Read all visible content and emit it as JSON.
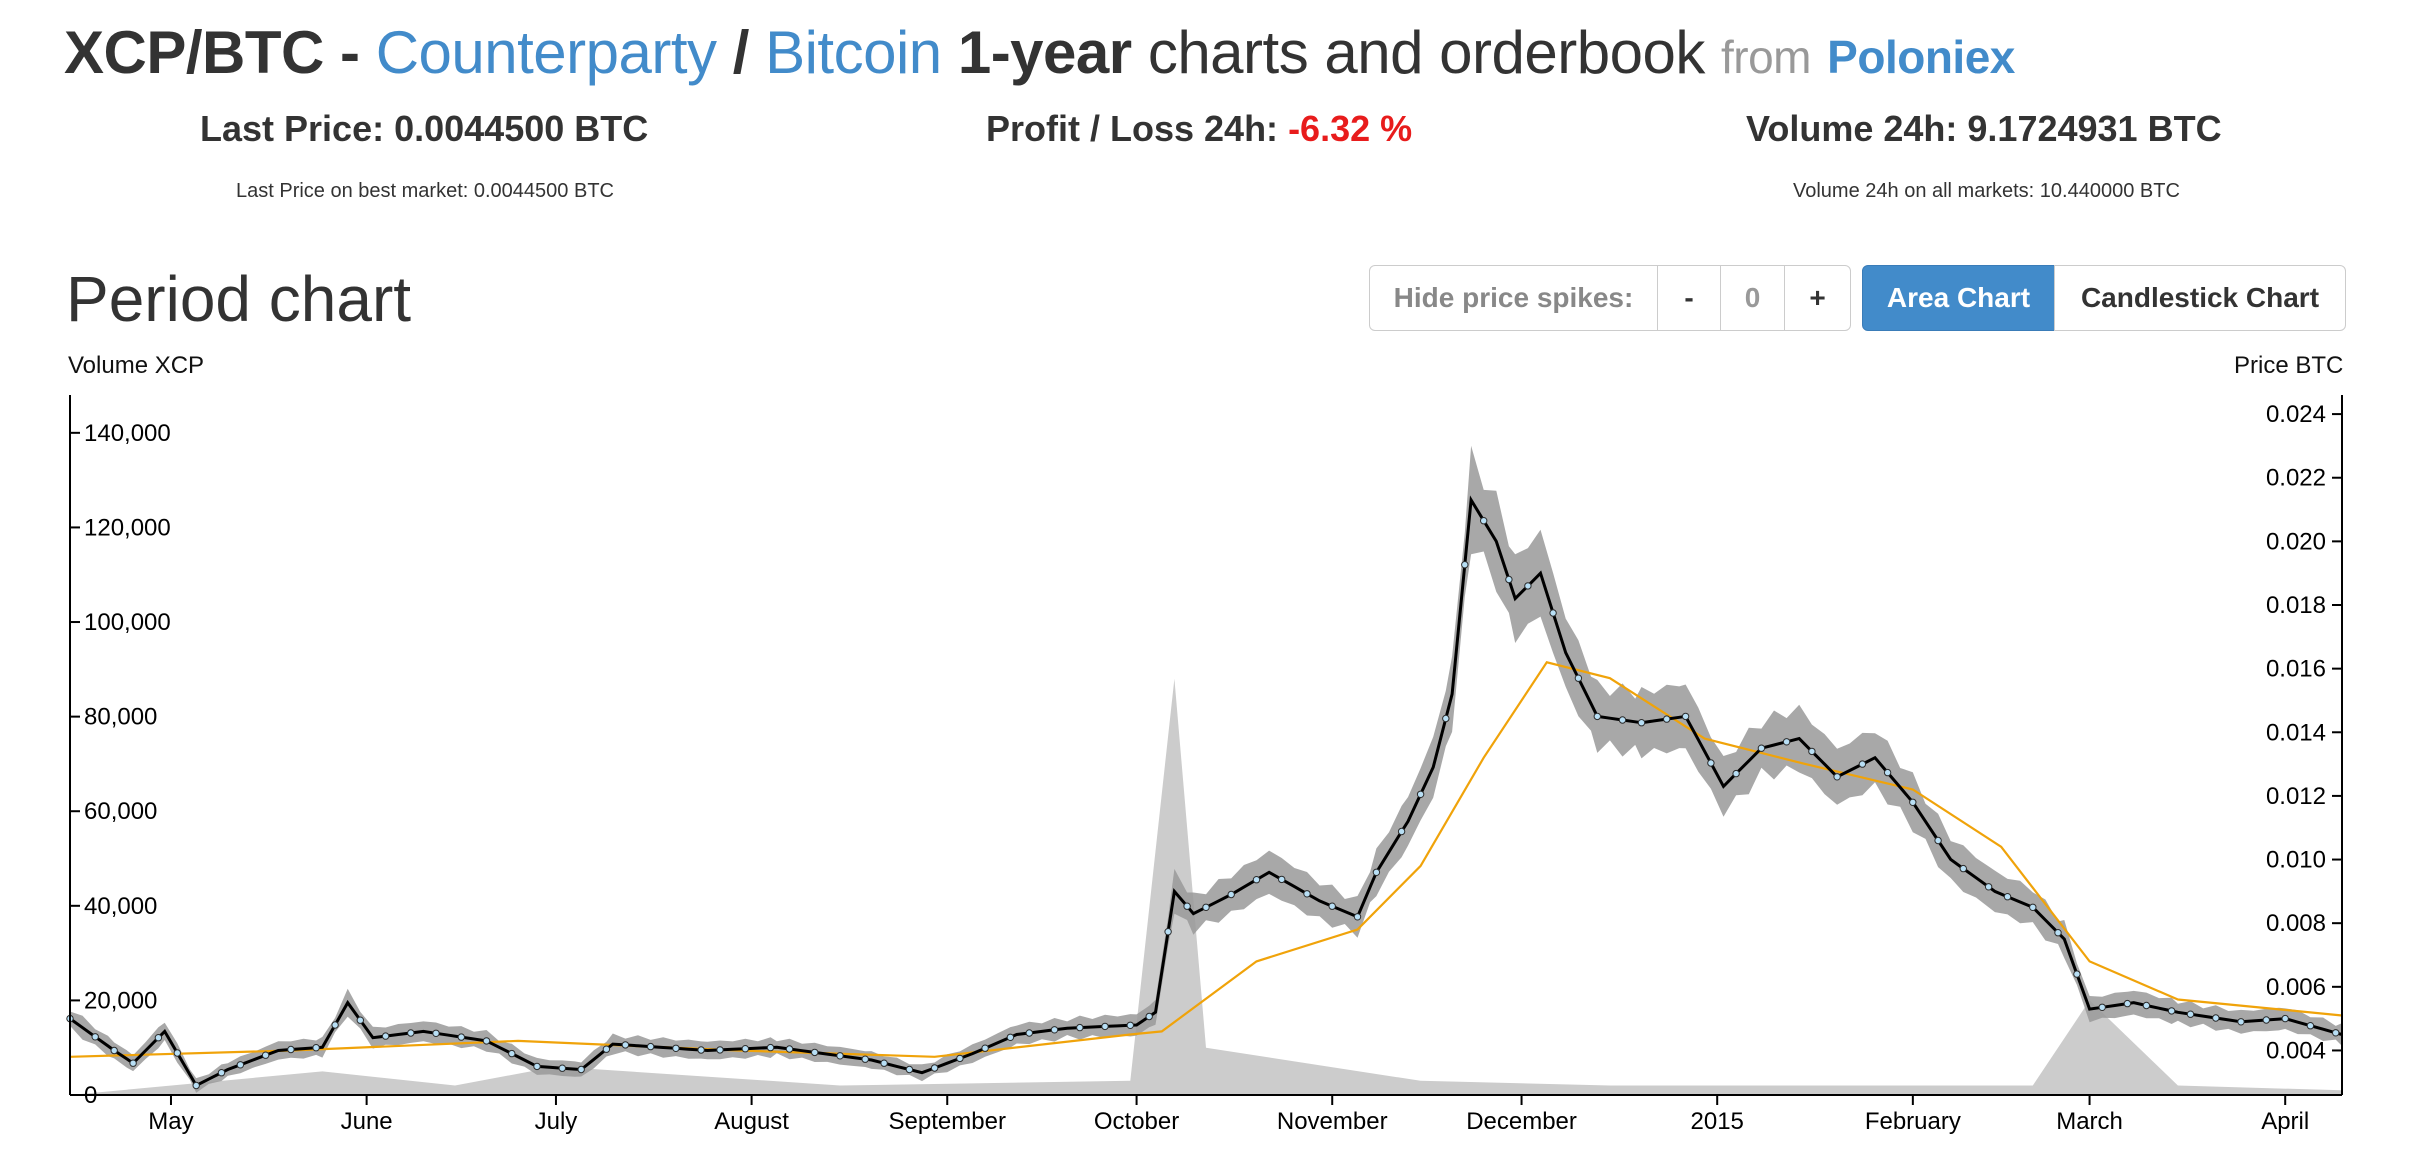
{
  "header": {
    "pair": "XCP/BTC",
    "dash": "-",
    "asset_name": "Counterparty",
    "slash": "/",
    "base_name": "Bitcoin",
    "period_text": "1-year",
    "rest_text": "charts and orderbook",
    "from_text": "from",
    "exchange": "Poloniex"
  },
  "stats": {
    "last_price_label": "Last Price:",
    "last_price_value": "0.0044500 BTC",
    "profit_label": "Profit / Loss 24h:",
    "profit_value": "-6.32 %",
    "volume_label": "Volume 24h:",
    "volume_value": "9.1724931 BTC",
    "best_market_text": "Last Price on best market: 0.0044500 BTC",
    "all_markets_text": "Volume 24h on all markets: 10.440000 BTC"
  },
  "period": {
    "title": "Period chart",
    "hide_spikes_label": "Hide price spikes:",
    "minus_label": "-",
    "spike_value": "0",
    "plus_label": "+",
    "area_chart_label": "Area Chart",
    "candlestick_chart_label": "Candlestick Chart"
  },
  "colors": {
    "accent": "#428bca",
    "negative": "#e81c1c",
    "price_line": "#000000",
    "range_band": "#999999",
    "moving_average": "#f0a30a",
    "volume_area": "#cccccc",
    "point_fill": "#b8dff5"
  },
  "chart_data": {
    "type": "line",
    "left_axis_label": "Volume XCP",
    "right_axis_label": "Price BTC",
    "x_range": [
      "2014-04-15",
      "2015-04-10"
    ],
    "x_ticks": [
      {
        "date": "2014-05-01",
        "label": "May"
      },
      {
        "date": "2014-06-01",
        "label": "June"
      },
      {
        "date": "2014-07-01",
        "label": "July"
      },
      {
        "date": "2014-08-01",
        "label": "August"
      },
      {
        "date": "2014-09-01",
        "label": "September"
      },
      {
        "date": "2014-10-01",
        "label": "October"
      },
      {
        "date": "2014-11-01",
        "label": "November"
      },
      {
        "date": "2014-12-01",
        "label": "December"
      },
      {
        "date": "2015-01-01",
        "label": "2015"
      },
      {
        "date": "2015-02-01",
        "label": "February"
      },
      {
        "date": "2015-03-01",
        "label": "March"
      },
      {
        "date": "2015-04-01",
        "label": "April"
      }
    ],
    "volume_axis": {
      "range": [
        0,
        148000
      ],
      "ticks": [
        0,
        20000,
        40000,
        60000,
        80000,
        100000,
        120000,
        140000
      ],
      "tick_labels": [
        "0",
        "20,000",
        "40,000",
        "60,000",
        "80,000",
        "100,000",
        "120,000",
        "140,000"
      ]
    },
    "price_axis": {
      "range": [
        0.0026,
        0.0246
      ],
      "ticks": [
        0.004,
        0.006,
        0.008,
        0.01,
        0.012,
        0.014,
        0.016,
        0.018,
        0.02,
        0.022,
        0.024
      ],
      "tick_labels": [
        "0.004",
        "0.006",
        "0.008",
        "0.010",
        "0.012",
        "0.014",
        "0.016",
        "0.018",
        "0.020",
        "0.022",
        "0.024"
      ]
    },
    "series": [
      {
        "name": "Price",
        "points": [
          [
            "2014-04-15",
            0.005
          ],
          [
            "2014-04-22",
            0.004
          ],
          [
            "2014-04-25",
            0.0036
          ],
          [
            "2014-04-30",
            0.0046
          ],
          [
            "2014-05-05",
            0.0029
          ],
          [
            "2014-05-10",
            0.0034
          ],
          [
            "2014-05-18",
            0.004
          ],
          [
            "2014-05-25",
            0.0041
          ],
          [
            "2014-05-29",
            0.0055
          ],
          [
            "2014-06-02",
            0.0044
          ],
          [
            "2014-06-10",
            0.0046
          ],
          [
            "2014-06-20",
            0.0043
          ],
          [
            "2014-06-28",
            0.0035
          ],
          [
            "2014-07-05",
            0.0034
          ],
          [
            "2014-07-10",
            0.0042
          ],
          [
            "2014-07-25",
            0.004
          ],
          [
            "2014-08-05",
            0.0041
          ],
          [
            "2014-08-20",
            0.0037
          ],
          [
            "2014-08-28",
            0.0033
          ],
          [
            "2014-09-05",
            0.0039
          ],
          [
            "2014-09-12",
            0.0045
          ],
          [
            "2014-09-20",
            0.0047
          ],
          [
            "2014-10-01",
            0.0048
          ],
          [
            "2014-10-04",
            0.0052
          ],
          [
            "2014-10-07",
            0.009
          ],
          [
            "2014-10-10",
            0.0083
          ],
          [
            "2014-10-16",
            0.0089
          ],
          [
            "2014-10-22",
            0.0096
          ],
          [
            "2014-10-30",
            0.0087
          ],
          [
            "2014-11-05",
            0.0082
          ],
          [
            "2014-11-08",
            0.0096
          ],
          [
            "2014-11-13",
            0.0112
          ],
          [
            "2014-11-17",
            0.0129
          ],
          [
            "2014-11-20",
            0.0152
          ],
          [
            "2014-11-23",
            0.0213
          ],
          [
            "2014-11-27",
            0.02
          ],
          [
            "2014-11-30",
            0.0182
          ],
          [
            "2014-12-04",
            0.019
          ],
          [
            "2014-12-08",
            0.0165
          ],
          [
            "2014-12-13",
            0.0145
          ],
          [
            "2014-12-20",
            0.0143
          ],
          [
            "2014-12-27",
            0.0145
          ],
          [
            "2015-01-02",
            0.0123
          ],
          [
            "2015-01-08",
            0.0135
          ],
          [
            "2015-01-14",
            0.0138
          ],
          [
            "2015-01-20",
            0.0126
          ],
          [
            "2015-01-26",
            0.0132
          ],
          [
            "2015-02-01",
            0.0118
          ],
          [
            "2015-02-07",
            0.01
          ],
          [
            "2015-02-14",
            0.009
          ],
          [
            "2015-02-20",
            0.0085
          ],
          [
            "2015-02-25",
            0.0075
          ],
          [
            "2015-03-01",
            0.0053
          ],
          [
            "2015-03-08",
            0.0055
          ],
          [
            "2015-03-15",
            0.0052
          ],
          [
            "2015-03-25",
            0.0049
          ],
          [
            "2015-04-01",
            0.005
          ],
          [
            "2015-04-10",
            0.0045
          ]
        ]
      },
      {
        "name": "Moving average",
        "points": [
          [
            "2014-04-15",
            0.0038
          ],
          [
            "2014-05-20",
            0.004
          ],
          [
            "2014-06-25",
            0.0043
          ],
          [
            "2014-07-30",
            0.004
          ],
          [
            "2014-08-30",
            0.0038
          ],
          [
            "2014-09-30",
            0.0045
          ],
          [
            "2014-10-05",
            0.0046
          ],
          [
            "2014-10-20",
            0.0068
          ],
          [
            "2014-11-05",
            0.0078
          ],
          [
            "2014-11-15",
            0.0098
          ],
          [
            "2014-11-25",
            0.0132
          ],
          [
            "2014-12-05",
            0.0162
          ],
          [
            "2014-12-15",
            0.0157
          ],
          [
            "2014-12-30",
            0.0138
          ],
          [
            "2015-01-15",
            0.013
          ],
          [
            "2015-02-01",
            0.0122
          ],
          [
            "2015-02-15",
            0.0104
          ],
          [
            "2015-03-01",
            0.0068
          ],
          [
            "2015-03-15",
            0.0056
          ],
          [
            "2015-04-10",
            0.0051
          ]
        ]
      },
      {
        "name": "Volume",
        "points": [
          [
            "2014-04-15",
            0
          ],
          [
            "2014-05-25",
            5000
          ],
          [
            "2014-06-15",
            2000
          ],
          [
            "2014-07-01",
            6000
          ],
          [
            "2014-08-15",
            2000
          ],
          [
            "2014-09-30",
            3000
          ],
          [
            "2014-10-07",
            88000
          ],
          [
            "2014-10-12",
            10000
          ],
          [
            "2014-11-15",
            3000
          ],
          [
            "2014-12-15",
            2000
          ],
          [
            "2015-02-20",
            2000
          ],
          [
            "2015-03-01",
            20000
          ],
          [
            "2015-03-15",
            2000
          ],
          [
            "2015-04-10",
            1000
          ]
        ]
      }
    ]
  }
}
